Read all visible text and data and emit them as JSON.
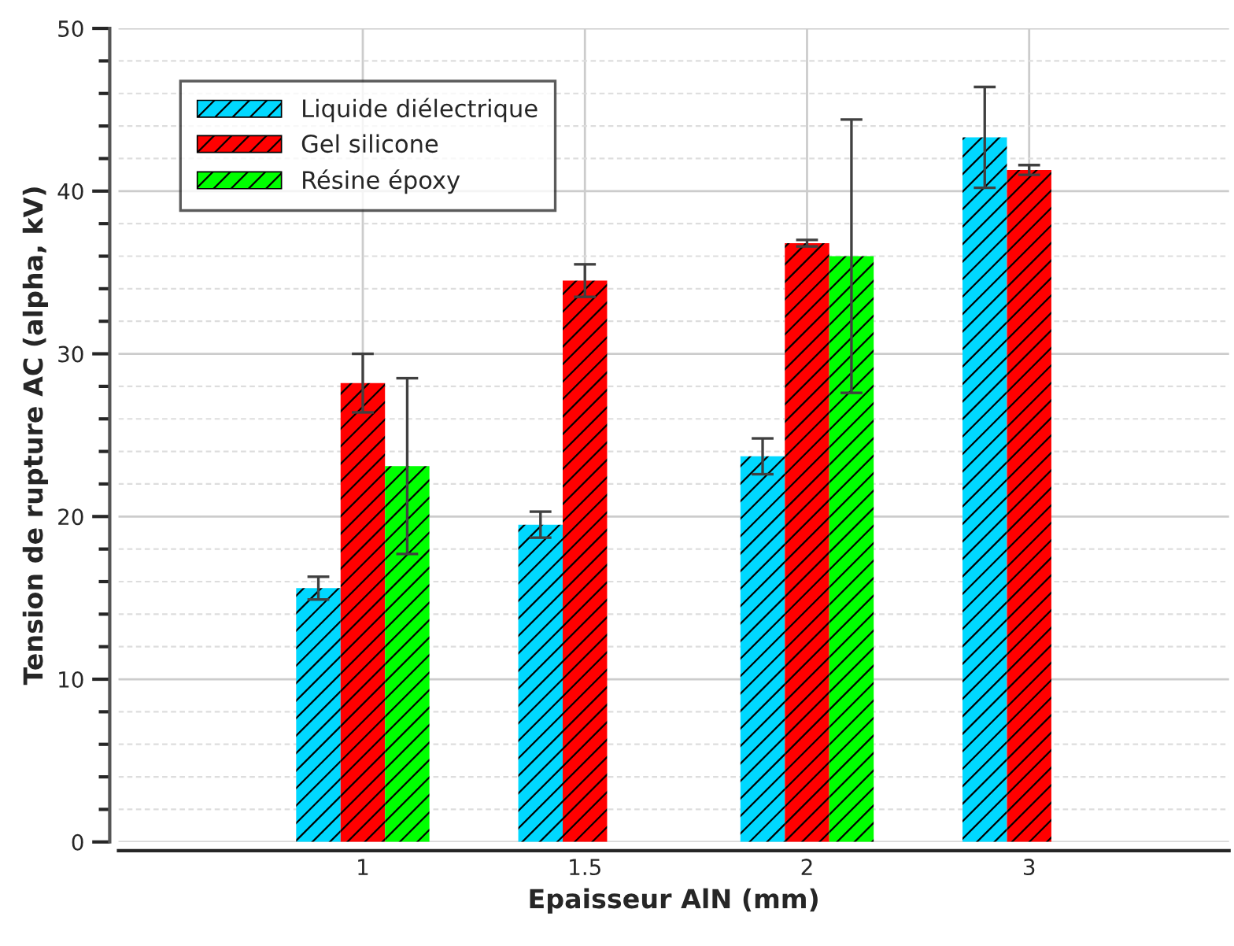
{
  "chart_data": {
    "type": "bar",
    "xlabel": "Epaisseur AlN (mm)",
    "ylabel": "Tension de rupture AC (alpha, kV)",
    "categories": [
      "1",
      "1.5",
      "2",
      "3"
    ],
    "series": [
      {
        "name": "Liquide diélectrique",
        "color": "#00d8ff",
        "values": [
          15.6,
          19.5,
          23.7,
          43.3
        ],
        "errors": [
          0.7,
          0.8,
          1.1,
          3.1
        ]
      },
      {
        "name": "Gel silicone",
        "color": "#ff0000",
        "values": [
          28.2,
          34.5,
          36.8,
          41.3
        ],
        "errors": [
          1.8,
          1.0,
          0.2,
          0.3
        ]
      },
      {
        "name": "Résine époxy",
        "color": "#00ff00",
        "values": [
          23.1,
          null,
          36.0,
          null
        ],
        "errors": [
          5.4,
          null,
          8.4,
          null
        ]
      }
    ],
    "ylim": [
      0,
      50
    ],
    "yticks": [
      0,
      10,
      20,
      30,
      40,
      50
    ],
    "grid": true,
    "legend": "top left"
  }
}
